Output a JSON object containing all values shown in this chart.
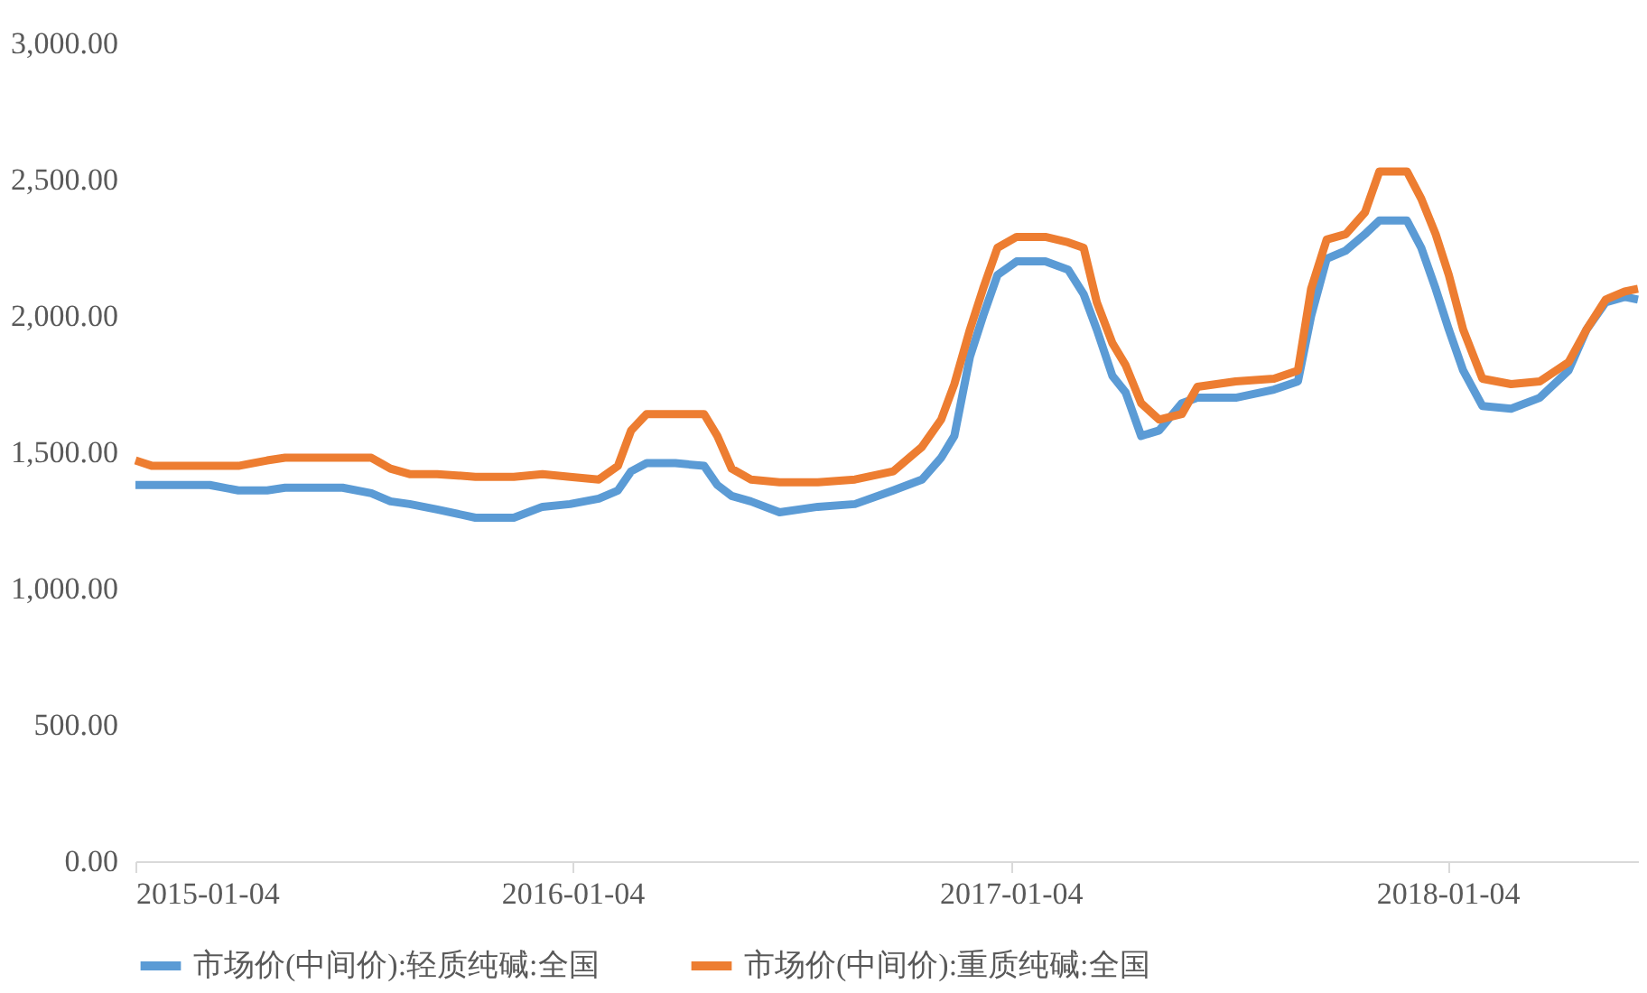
{
  "chart_data": {
    "type": "line",
    "x": [
      "2015-01-04",
      "2015-01-18",
      "2015-02-11",
      "2015-03-07",
      "2015-03-31",
      "2015-04-24",
      "2015-05-09",
      "2015-06-02",
      "2015-06-26",
      "2015-07-20",
      "2015-08-05",
      "2015-08-21",
      "2015-09-13",
      "2015-10-15",
      "2015-11-16",
      "2015-12-10",
      "2016-01-02",
      "2016-01-26",
      "2016-02-11",
      "2016-02-22",
      "2016-03-06",
      "2016-03-30",
      "2016-04-23",
      "2016-05-04",
      "2016-05-16",
      "2016-06-01",
      "2016-06-25",
      "2016-07-27",
      "2016-08-27",
      "2016-09-28",
      "2016-10-22",
      "2016-11-07",
      "2016-11-18",
      "2016-12-01",
      "2016-12-12",
      "2016-12-24",
      "2017-01-09",
      "2017-02-02",
      "2017-02-21",
      "2017-03-06",
      "2017-03-17",
      "2017-03-30",
      "2017-04-10",
      "2017-04-23",
      "2017-05-08",
      "2017-05-27",
      "2017-06-09",
      "2017-07-11",
      "2017-08-12",
      "2017-09-01",
      "2017-09-12",
      "2017-09-25",
      "2017-10-11",
      "2017-10-27",
      "2017-11-08",
      "2017-12-01",
      "2017-12-13",
      "2017-12-25",
      "2018-01-05",
      "2018-01-17",
      "2018-02-02",
      "2018-02-26",
      "2018-03-22",
      "2018-04-15",
      "2018-04-30",
      "2018-05-16",
      "2018-06-01",
      "2018-06-12"
    ],
    "series": [
      {
        "name": "市场价(中间价):轻质纯碱:全国",
        "color": "#5b9bd5",
        "values": [
          1380,
          1380,
          1380,
          1380,
          1360,
          1360,
          1370,
          1370,
          1370,
          1350,
          1320,
          1310,
          1290,
          1260,
          1260,
          1300,
          1310,
          1330,
          1360,
          1430,
          1460,
          1460,
          1450,
          1380,
          1340,
          1320,
          1280,
          1300,
          1310,
          1360,
          1400,
          1480,
          1560,
          1850,
          2000,
          2150,
          2200,
          2200,
          2170,
          2080,
          1950,
          1780,
          1720,
          1560,
          1580,
          1680,
          1700,
          1700,
          1730,
          1760,
          2000,
          2210,
          2240,
          2300,
          2350,
          2350,
          2250,
          2100,
          1950,
          1800,
          1670,
          1660,
          1700,
          1800,
          1950,
          2050,
          2070,
          2060
        ]
      },
      {
        "name": "市场价(中间价):重质纯碱:全国",
        "color": "#ed7d31",
        "values": [
          1470,
          1450,
          1450,
          1450,
          1450,
          1470,
          1480,
          1480,
          1480,
          1480,
          1440,
          1420,
          1420,
          1410,
          1410,
          1420,
          1410,
          1400,
          1450,
          1580,
          1640,
          1640,
          1640,
          1560,
          1440,
          1400,
          1390,
          1390,
          1400,
          1430,
          1520,
          1620,
          1750,
          1950,
          2100,
          2250,
          2290,
          2290,
          2270,
          2250,
          2050,
          1900,
          1820,
          1680,
          1620,
          1640,
          1740,
          1760,
          1770,
          1800,
          2100,
          2280,
          2300,
          2380,
          2530,
          2530,
          2430,
          2300,
          2150,
          1950,
          1770,
          1750,
          1760,
          1830,
          1950,
          2060,
          2090,
          2100
        ]
      }
    ],
    "xlim": [
      "2015-01-04",
      "2018-06-12"
    ],
    "xticks": [
      "2015-01-04",
      "2016-01-04",
      "2017-01-04",
      "2018-01-04"
    ],
    "ylim": [
      0,
      3000
    ],
    "yticks": [
      {
        "value": 0,
        "label": "0.00"
      },
      {
        "value": 500,
        "label": "500.00"
      },
      {
        "value": 1000,
        "label": "1,000.00"
      },
      {
        "value": 1500,
        "label": "1,500.00"
      },
      {
        "value": 2000,
        "label": "2,000.00"
      },
      {
        "value": 2500,
        "label": "2,500.00"
      },
      {
        "value": 3000,
        "label": "3,000.00"
      }
    ],
    "grid": false,
    "legend": "bottom",
    "marker": "none",
    "line_style": "solid"
  }
}
